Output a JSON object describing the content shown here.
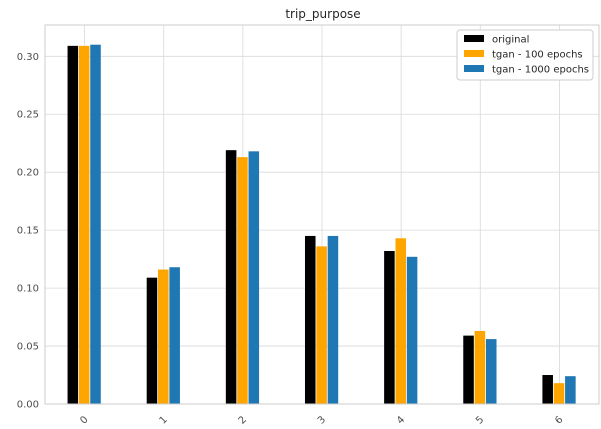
{
  "chart_data": {
    "type": "bar",
    "title": "trip_purpose",
    "xlabel": "",
    "ylabel": "",
    "categories": [
      "0",
      "1",
      "2",
      "3",
      "4",
      "5",
      "6"
    ],
    "series": [
      {
        "name": "original",
        "color": "#000000",
        "values": [
          0.309,
          0.109,
          0.219,
          0.145,
          0.132,
          0.059,
          0.025
        ]
      },
      {
        "name": "tgan - 100 epochs",
        "color": "#ffa500",
        "values": [
          0.309,
          0.116,
          0.213,
          0.136,
          0.143,
          0.063,
          0.018
        ]
      },
      {
        "name": "tgan - 1000 epochs",
        "color": "#1f77b4",
        "values": [
          0.31,
          0.118,
          0.218,
          0.145,
          0.127,
          0.056,
          0.024
        ]
      }
    ],
    "ylim": [
      0,
      0.327
    ],
    "yticks": [
      0.0,
      0.05,
      0.1,
      0.15,
      0.2,
      0.25,
      0.3
    ],
    "ytick_labels": [
      "0.00",
      "0.05",
      "0.10",
      "0.15",
      "0.20",
      "0.25",
      "0.30"
    ],
    "xtick_rotation": 45,
    "grid": true,
    "legend_position": "top-right"
  }
}
